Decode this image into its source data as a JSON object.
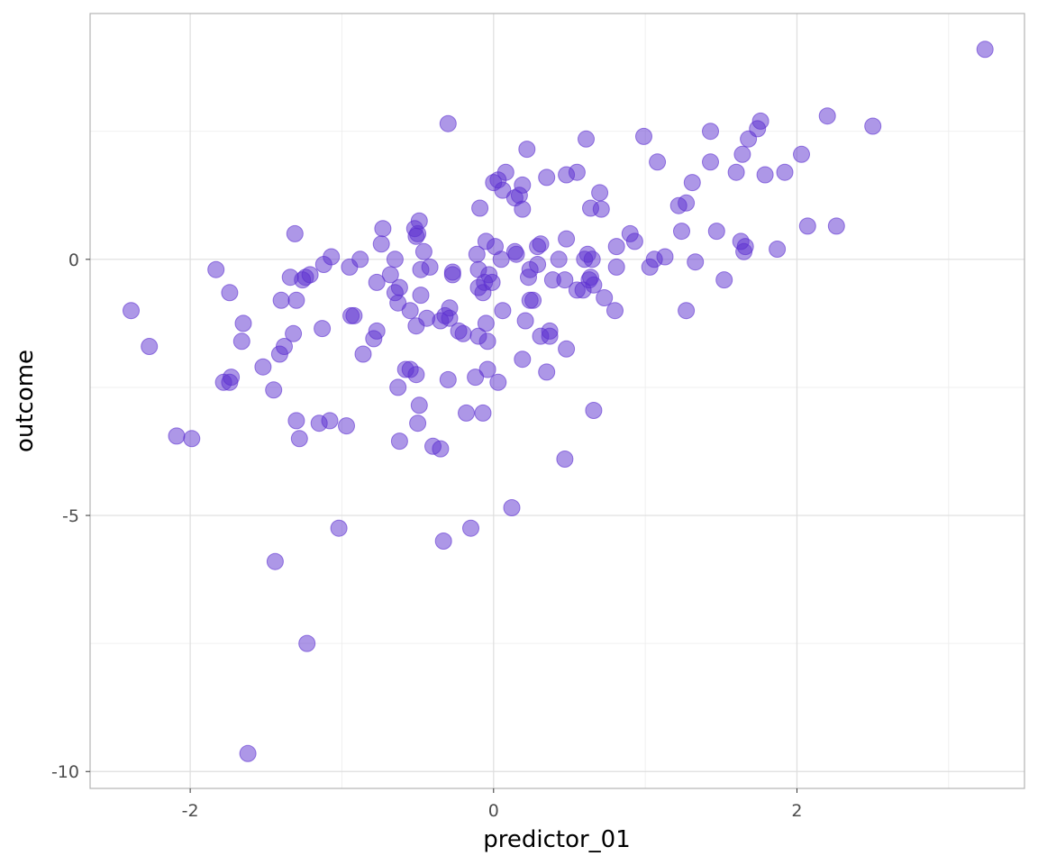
{
  "chart_data": {
    "type": "scatter",
    "title": "",
    "xlabel": "predictor_01",
    "ylabel": "outcome",
    "xlim": [
      -2.66,
      3.5
    ],
    "ylim": [
      -10.33,
      4.8
    ],
    "x_ticks": [
      -2,
      0,
      2
    ],
    "x_tick_labels": [
      "-2",
      "0",
      "2"
    ],
    "y_ticks": [
      -10,
      -5,
      0
    ],
    "y_tick_labels": [
      "-10",
      "-5",
      "0"
    ],
    "grid": true,
    "legend": "none",
    "point_color": "#5b2fd0",
    "series": [
      {
        "x": [
          3.24,
          2.2,
          2.5,
          1.76,
          1.74,
          1.68,
          1.43,
          0.99,
          0.61,
          0.22,
          -0.3,
          1.64,
          2.03,
          1.43,
          1.08,
          1.6,
          1.79,
          1.92,
          0.55,
          0.48,
          0.35,
          1.31,
          1.27,
          1.22,
          0.7,
          0.64,
          0.71,
          0.0,
          0.06,
          0.14,
          0.17,
          0.03,
          0.08,
          0.19,
          0.19,
          -0.09,
          2.07,
          2.26,
          1.47,
          1.24,
          0.9,
          0.93,
          0.81,
          0.62,
          0.48,
          0.29,
          0.31,
          0.15,
          0.14,
          0.01,
          -0.05,
          -0.11,
          1.63,
          1.66,
          1.65,
          1.87,
          1.13,
          1.06,
          1.33,
          1.03,
          0.81,
          0.65,
          0.6,
          0.43,
          0.39,
          0.29,
          0.24,
          0.05,
          -0.5,
          -0.49,
          -0.52,
          -0.51,
          -0.46,
          -0.73,
          -0.74,
          -0.65,
          -0.48,
          -0.42,
          -1.31,
          -1.07,
          -1.12,
          -0.95,
          -0.88,
          -1.24,
          -1.3,
          -1.21,
          -1.26,
          -1.34,
          -1.4,
          -1.83,
          -0.1,
          -0.03,
          -0.06,
          -0.1,
          -0.07,
          -0.01,
          0.64,
          0.66,
          0.55,
          0.59,
          0.47,
          0.63,
          0.23,
          0.26,
          1.52,
          1.27,
          0.8,
          0.73,
          -0.65,
          -0.68,
          -0.77,
          -0.62,
          -0.48,
          -0.63,
          -0.79,
          -0.77,
          -0.51,
          -0.55,
          -0.44,
          -0.35,
          -0.32,
          -0.29,
          -0.29,
          -0.27,
          -0.27,
          -0.23,
          -0.2,
          -0.1,
          -0.94,
          -0.92,
          -0.05,
          -0.04,
          0.06,
          0.21,
          0.24,
          0.37,
          0.35,
          0.31,
          0.48,
          0.19,
          -2.39,
          -2.27,
          -1.74,
          -1.65,
          -1.66,
          -1.52,
          -1.41,
          -1.38,
          -1.32,
          -1.13,
          -1.78,
          -1.74,
          -1.73,
          -1.45,
          -0.86,
          -0.63,
          -0.58,
          -0.51,
          -0.55,
          -0.3,
          -0.12,
          0.03,
          -0.04,
          0.37,
          -2.09,
          -1.99,
          -1.3,
          -1.28,
          -1.15,
          -1.08,
          -0.97,
          -0.49,
          -0.5,
          -0.62,
          -0.4,
          -0.35,
          -0.18,
          -0.07,
          0.47,
          0.66,
          -1.02,
          -1.44,
          0.12,
          -0.33,
          -0.15,
          -1.23,
          -1.62
        ],
        "y": [
          4.1,
          2.8,
          2.6,
          2.7,
          2.55,
          2.35,
          2.5,
          2.4,
          2.35,
          2.15,
          2.65,
          2.05,
          2.05,
          1.9,
          1.9,
          1.7,
          1.65,
          1.7,
          1.7,
          1.65,
          1.6,
          1.5,
          1.1,
          1.05,
          1.3,
          1.0,
          0.98,
          1.5,
          1.35,
          1.2,
          1.25,
          1.55,
          1.7,
          1.45,
          0.98,
          1.0,
          0.65,
          0.65,
          0.55,
          0.55,
          0.5,
          0.35,
          0.25,
          0.1,
          0.4,
          0.25,
          0.3,
          0.1,
          0.15,
          0.25,
          0.35,
          0.1,
          0.35,
          0.25,
          0.15,
          0.2,
          0.05,
          0.0,
          -0.05,
          -0.15,
          -0.15,
          0.0,
          0.0,
          0.0,
          -0.4,
          -0.1,
          -0.2,
          0.0,
          0.5,
          0.75,
          0.6,
          0.45,
          0.15,
          0.6,
          0.3,
          0.0,
          -0.2,
          -0.15,
          0.5,
          0.05,
          -0.1,
          -0.15,
          0.0,
          -0.35,
          -0.8,
          -0.3,
          -0.4,
          -0.35,
          -0.8,
          -0.2,
          -0.2,
          -0.3,
          -0.45,
          -0.55,
          -0.65,
          -0.45,
          -0.35,
          -0.5,
          -0.6,
          -0.6,
          -0.4,
          -0.4,
          -0.35,
          -0.8,
          -0.4,
          -1.0,
          -1.0,
          -0.75,
          -0.65,
          -0.3,
          -0.45,
          -0.55,
          -0.7,
          -0.85,
          -1.55,
          -1.4,
          -1.3,
          -1.0,
          -1.15,
          -1.2,
          -1.1,
          -1.15,
          -0.95,
          -0.25,
          -0.3,
          -1.4,
          -1.45,
          -1.5,
          -1.1,
          -1.1,
          -1.25,
          -1.6,
          -1.0,
          -1.2,
          -0.8,
          -1.4,
          -2.2,
          -1.5,
          -1.75,
          -1.95,
          -1.0,
          -1.7,
          -0.65,
          -1.25,
          -1.6,
          -2.1,
          -1.85,
          -1.7,
          -1.45,
          -1.35,
          -2.4,
          -2.4,
          -2.3,
          -2.55,
          -1.85,
          -2.5,
          -2.15,
          -2.25,
          -2.15,
          -2.35,
          -2.3,
          -2.4,
          -2.15,
          -1.5,
          -3.45,
          -3.5,
          -3.15,
          -3.5,
          -3.2,
          -3.15,
          -3.25,
          -2.85,
          -3.2,
          -3.55,
          -3.65,
          -3.7,
          -3.0,
          -3.0,
          -3.9,
          -2.95,
          -5.25,
          -5.9,
          -4.85,
          -5.5,
          -5.25,
          -7.5,
          -9.65
        ]
      }
    ]
  }
}
